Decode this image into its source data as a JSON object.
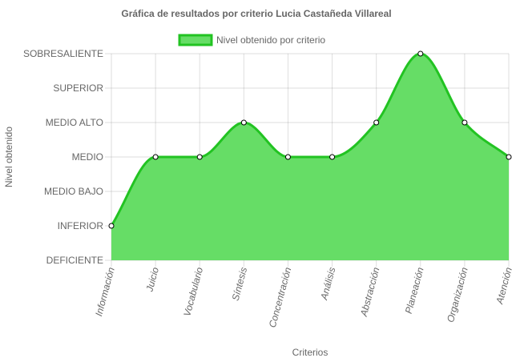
{
  "chart_data": {
    "type": "line",
    "title": "Gráfica de resultados por criterio Lucia Castañeda Villareal",
    "xlabel": "Criterios",
    "ylabel": "Nivel obtenido",
    "levels": [
      "DEFICIENTE",
      "INFERIOR",
      "MEDIO BAJO",
      "MEDIO",
      "MEDIO ALTO",
      "SUPERIOR",
      "SOBRESALIENTE"
    ],
    "categories": [
      "Información",
      "Juicio",
      "Vocabulario",
      "Síntesis",
      "Concentración",
      "Análisis",
      "Abstracción",
      "Planeación",
      "Organización",
      "Atención"
    ],
    "series": [
      {
        "name": "Nivel obtenido por criterio",
        "values": [
          "INFERIOR",
          "MEDIO",
          "MEDIO",
          "MEDIO ALTO",
          "MEDIO",
          "MEDIO",
          "MEDIO ALTO",
          "SOBRESALIENTE",
          "MEDIO ALTO",
          "MEDIO"
        ],
        "fill_color": "#66dd66",
        "line_color": "#22c322"
      }
    ],
    "legend_position": "top",
    "grid": true,
    "smooth": true
  }
}
